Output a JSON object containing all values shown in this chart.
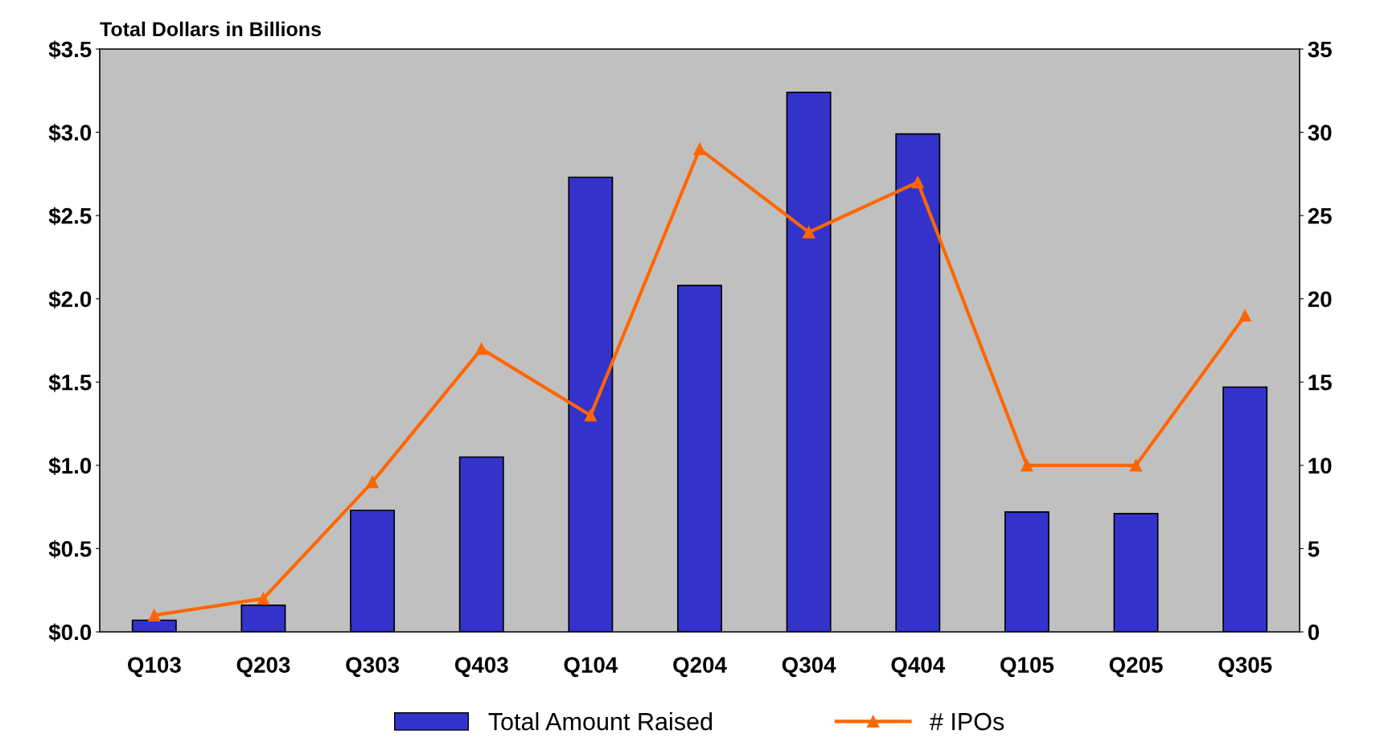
{
  "chart_data": {
    "type": "bar",
    "ylabel": "Total Dollars in Billions",
    "categories": [
      "Q103",
      "Q203",
      "Q303",
      "Q403",
      "Q104",
      "Q204",
      "Q304",
      "Q404",
      "Q105",
      "Q205",
      "Q305"
    ],
    "series": [
      {
        "name": "Total Amount Raised",
        "color": "#3333cc",
        "values": [
          0.07,
          0.16,
          0.73,
          1.05,
          2.73,
          2.08,
          3.24,
          2.99,
          0.72,
          0.71,
          1.47
        ]
      },
      {
        "name": "# IPOs",
        "type": "line",
        "axis": "y2",
        "color": "#ff6600",
        "marker": "triangle",
        "values": [
          1,
          2,
          9,
          17,
          13,
          29,
          24,
          27,
          10,
          10,
          19
        ]
      }
    ],
    "ylim": [
      0,
      3.5
    ],
    "yticks": [
      {
        "value": 0,
        "label": "$0.0"
      },
      {
        "value": 0.5,
        "label": "$0.5"
      },
      {
        "value": 1,
        "label": "$1.0"
      },
      {
        "value": 1.5,
        "label": "$1.5"
      },
      {
        "value": 2,
        "label": "$2.0"
      },
      {
        "value": 2.5,
        "label": "$2.5"
      },
      {
        "value": 3,
        "label": "$3.0"
      },
      {
        "value": 3.5,
        "label": "$3.5"
      }
    ],
    "y2lim": [
      0,
      35
    ],
    "y2ticks": [
      0,
      5,
      10,
      15,
      20,
      25,
      30,
      35
    ],
    "grid": false,
    "legend": "bottom"
  }
}
